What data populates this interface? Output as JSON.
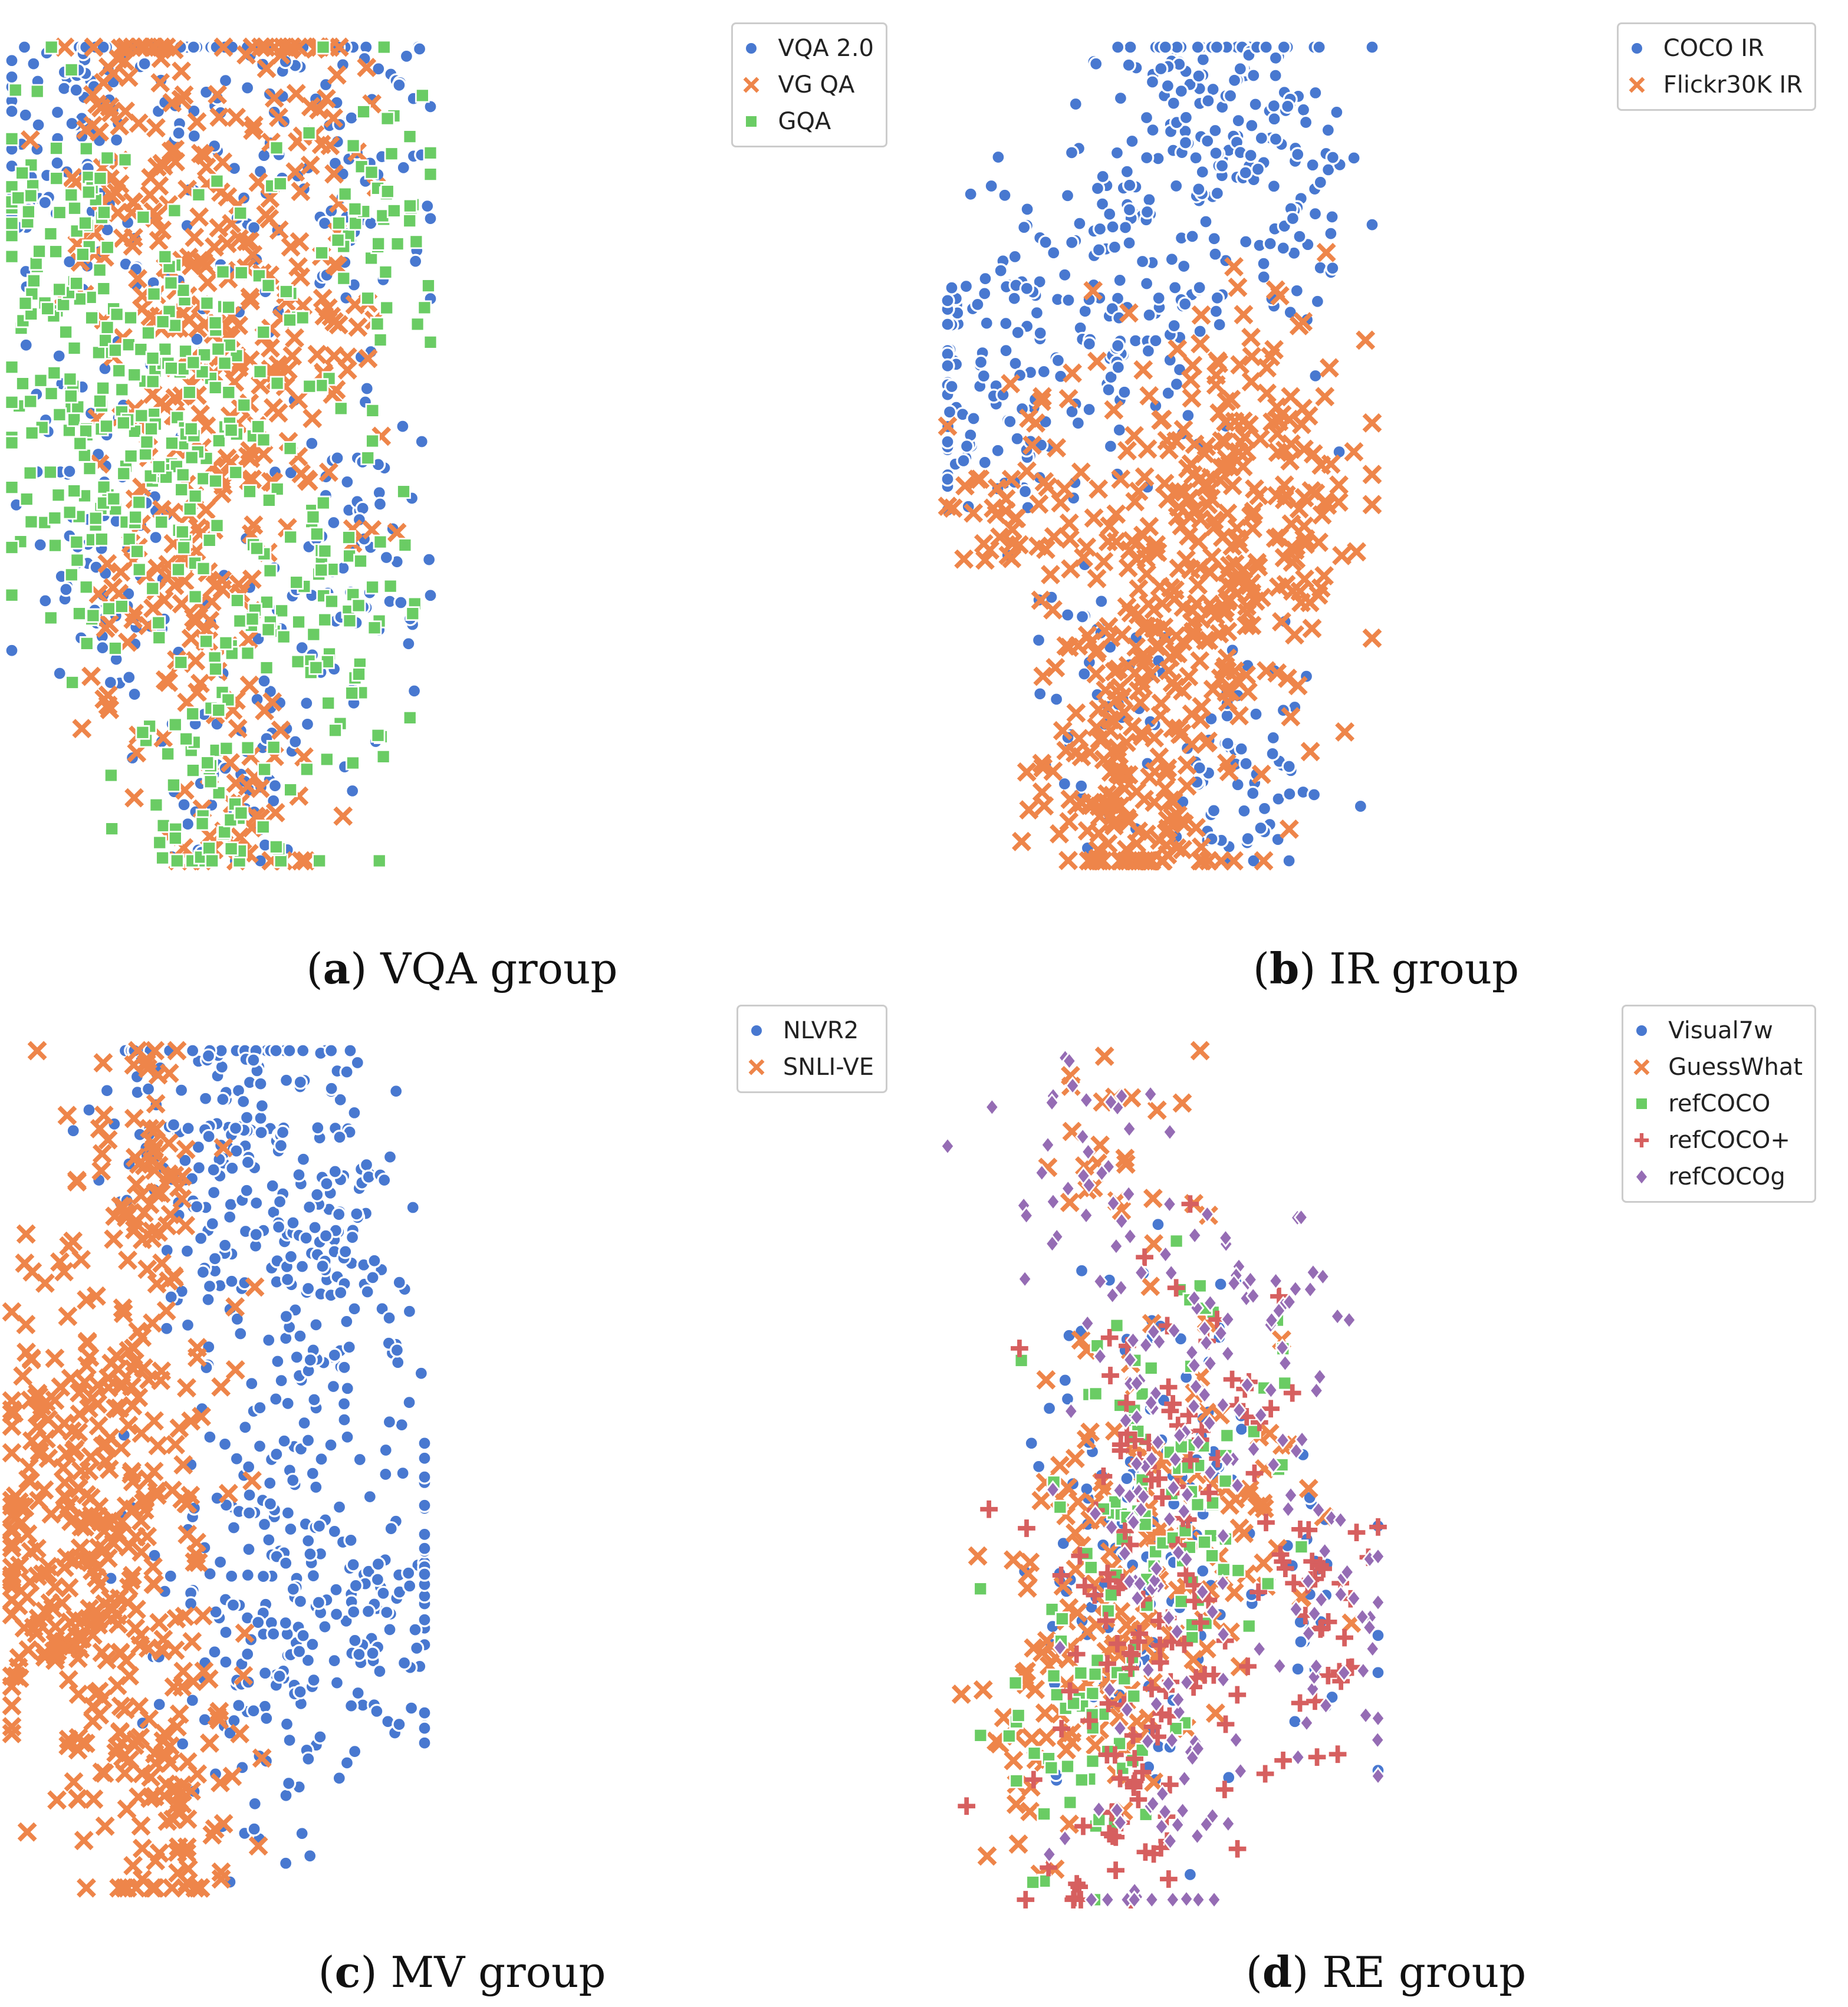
{
  "chart_data": [
    {
      "type": "scatter",
      "panel_letter": "a",
      "title": "VQA group",
      "xlabel": "",
      "ylabel": "",
      "axes": "off",
      "legend_position": "top-right",
      "series": [
        {
          "name": "VQA 2.0",
          "color": "#4878d0",
          "marker": "circle",
          "clusters": [
            [
              0.2,
              0.9,
              0.5
            ],
            [
              0.6,
              0.9,
              0.2
            ],
            [
              0.85,
              0.85,
              0.2
            ],
            [
              0.25,
              0.4,
              0.3
            ],
            [
              0.8,
              0.35,
              0.25
            ],
            [
              0.55,
              0.1,
              0.2
            ]
          ]
        },
        {
          "name": "VG QA",
          "color": "#ee854a",
          "marker": "x",
          "clusters": [
            [
              0.45,
              0.7,
              0.5
            ],
            [
              0.3,
              0.9,
              0.2
            ],
            [
              0.7,
              0.95,
              0.15
            ],
            [
              0.4,
              0.3,
              0.3
            ],
            [
              0.7,
              0.6,
              0.2
            ],
            [
              0.55,
              0.05,
              0.15
            ]
          ]
        },
        {
          "name": "GQA",
          "color": "#6acc64",
          "marker": "square",
          "clusters": [
            [
              0.2,
              0.5,
              0.4
            ],
            [
              0.1,
              0.8,
              0.2
            ],
            [
              0.45,
              0.55,
              0.4
            ],
            [
              0.8,
              0.3,
              0.2
            ],
            [
              0.5,
              0.1,
              0.25
            ],
            [
              0.85,
              0.8,
              0.2
            ]
          ]
        }
      ]
    },
    {
      "type": "scatter",
      "panel_letter": "b",
      "title": "IR group",
      "xlabel": "",
      "ylabel": "",
      "axes": "off",
      "legend_position": "top-right",
      "series": [
        {
          "name": "COCO IR",
          "color": "#4878d0",
          "marker": "circle",
          "clusters": [
            [
              0.6,
              0.95,
              0.25
            ],
            [
              0.8,
              0.85,
              0.2
            ],
            [
              0.1,
              0.6,
              0.3
            ],
            [
              0.45,
              0.7,
              0.25
            ],
            [
              0.7,
              0.1,
              0.15
            ],
            [
              0.35,
              0.2,
              0.1
            ]
          ]
        },
        {
          "name": "Flickr30K IR",
          "color": "#ee854a",
          "marker": "x",
          "clusters": [
            [
              0.55,
              0.35,
              0.5
            ],
            [
              0.15,
              0.45,
              0.1
            ],
            [
              0.75,
              0.45,
              0.3
            ],
            [
              0.4,
              0.1,
              0.2
            ],
            [
              0.5,
              0.02,
              0.1
            ]
          ]
        }
      ]
    },
    {
      "type": "scatter",
      "panel_letter": "c",
      "title": "MV group",
      "xlabel": "",
      "ylabel": "",
      "axes": "off",
      "legend_position": "top-right",
      "series": [
        {
          "name": "NLVR2",
          "color": "#4878d0",
          "marker": "circle",
          "clusters": [
            [
              0.45,
              0.9,
              0.3
            ],
            [
              0.7,
              0.85,
              0.3
            ],
            [
              0.65,
              0.35,
              0.5
            ],
            [
              0.95,
              0.35,
              0.15
            ],
            [
              0.8,
              0.7,
              0.15
            ]
          ]
        },
        {
          "name": "SNLI-VE",
          "color": "#ee854a",
          "marker": "x",
          "clusters": [
            [
              0.2,
              0.5,
              0.5
            ],
            [
              0.35,
              0.15,
              0.3
            ],
            [
              0.3,
              0.85,
              0.15
            ],
            [
              0.1,
              0.35,
              0.2
            ]
          ]
        }
      ]
    },
    {
      "type": "scatter",
      "panel_letter": "d",
      "title": "RE group",
      "xlabel": "",
      "ylabel": "",
      "axes": "off",
      "legend_position": "top-right",
      "series": [
        {
          "name": "Visual7w",
          "color": "#4878d0",
          "marker": "circle",
          "clusters": [
            [
              0.5,
              0.5,
              0.5
            ],
            [
              0.4,
              0.3,
              0.3
            ],
            [
              0.85,
              0.35,
              0.15
            ]
          ]
        },
        {
          "name": "GuessWhat",
          "color": "#ee854a",
          "marker": "x",
          "clusters": [
            [
              0.4,
              0.4,
              0.5
            ],
            [
              0.25,
              0.25,
              0.3
            ],
            [
              0.65,
              0.45,
              0.3
            ],
            [
              0.4,
              0.85,
              0.15
            ]
          ]
        },
        {
          "name": "refCOCO",
          "color": "#6acc64",
          "marker": "square",
          "clusters": [
            [
              0.5,
              0.5,
              0.5
            ],
            [
              0.3,
              0.2,
              0.3
            ]
          ]
        },
        {
          "name": "refCOCO+",
          "color": "#d65f5f",
          "marker": "plus",
          "clusters": [
            [
              0.5,
              0.45,
              0.5
            ],
            [
              0.4,
              0.15,
              0.3
            ],
            [
              0.85,
              0.35,
              0.2
            ]
          ]
        },
        {
          "name": "refCOCOg",
          "color": "#956cb4",
          "marker": "diamond",
          "clusters": [
            [
              0.5,
              0.55,
              0.5
            ],
            [
              0.3,
              0.85,
              0.2
            ],
            [
              0.9,
              0.35,
              0.2
            ],
            [
              0.5,
              0.15,
              0.3
            ],
            [
              0.75,
              0.7,
              0.2
            ]
          ]
        }
      ]
    }
  ]
}
